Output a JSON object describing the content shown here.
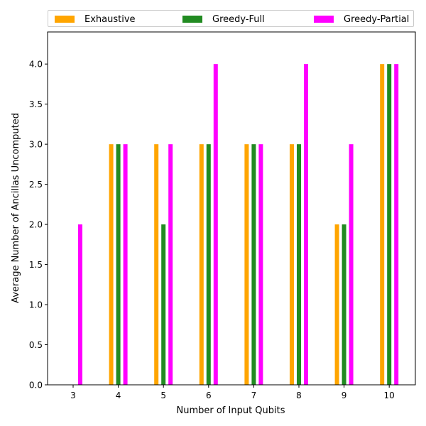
{
  "chart_data": {
    "type": "bar",
    "title": "",
    "xlabel": "Number of Input Qubits",
    "ylabel": "Average Number of Ancillas Uncomputed",
    "categories": [
      "3",
      "4",
      "5",
      "6",
      "7",
      "8",
      "9",
      "10"
    ],
    "ylim": [
      0,
      4.4
    ],
    "yticks": [
      "0.0",
      "0.5",
      "1.0",
      "1.5",
      "2.0",
      "2.5",
      "3.0",
      "3.5",
      "4.0"
    ],
    "legend_position": "top",
    "grid": false,
    "series": [
      {
        "name": "Exhaustive",
        "color": "#ffa500",
        "values": [
          0,
          3,
          3,
          3,
          3,
          3,
          2,
          4
        ]
      },
      {
        "name": "Greedy-Full",
        "color": "#228b22",
        "values": [
          0,
          3,
          2,
          3,
          3,
          3,
          2,
          4
        ]
      },
      {
        "name": "Greedy-Partial",
        "color": "#ff00ff",
        "values": [
          2,
          3,
          3,
          4,
          3,
          4,
          3,
          4
        ]
      }
    ]
  }
}
